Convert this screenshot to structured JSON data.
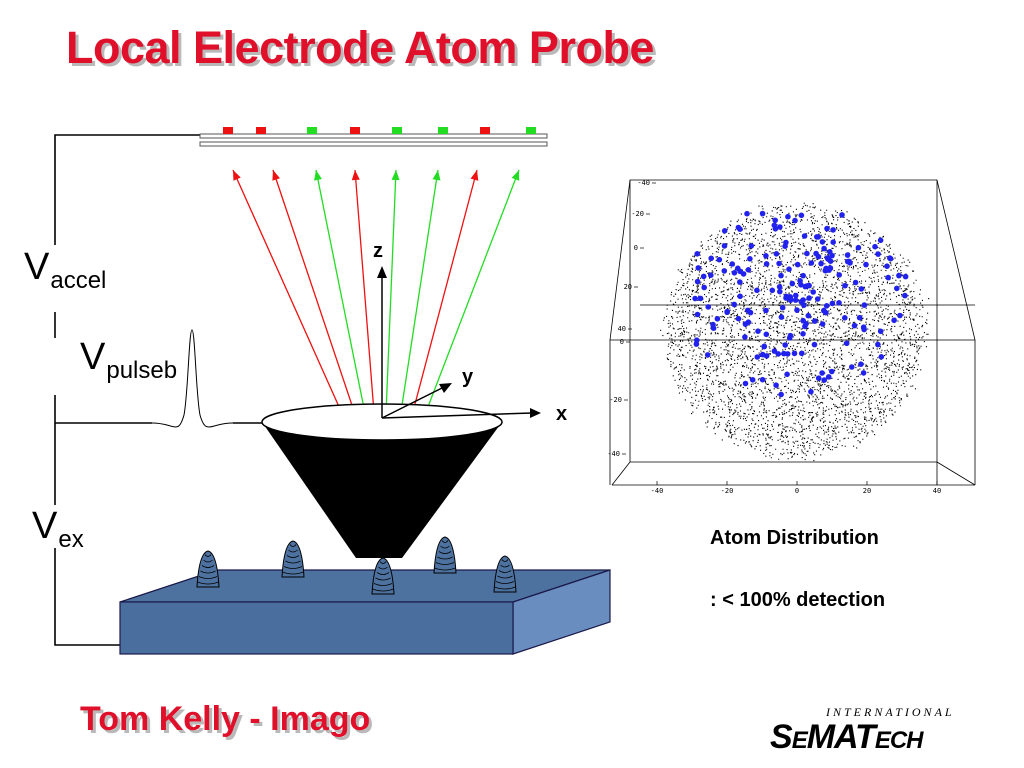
{
  "title": "Local Electrode Atom Probe",
  "labels": {
    "v_accel_base": "V",
    "v_accel_sub": "accel",
    "v_pulse_base": "V",
    "v_pulse_sub": "pulseb",
    "v_ex_base": "V",
    "v_ex_sub": "ex",
    "axis_z": "z",
    "axis_y": "y",
    "axis_x": "x"
  },
  "detector": {
    "pixel_colors": [
      "red",
      "red",
      "green",
      "red",
      "green",
      "green",
      "red",
      "green"
    ]
  },
  "atom_map": {
    "y_ticks_upper": [
      "-40",
      "-20",
      "0",
      "20",
      "40"
    ],
    "y_ticks_lower": [
      "0",
      "-20",
      "-40"
    ],
    "x_ticks": [
      "-40",
      "-20",
      "0",
      "20",
      "40"
    ]
  },
  "captions": {
    "line1": "Atom Distribution",
    "line2": ": < 100% detection"
  },
  "footer": "Tom Kelly - Imago",
  "logo": {
    "top": "INTERNATIONAL",
    "s1": "S",
    "s2": "E",
    "s3": "MAT",
    "s4": "ECH"
  },
  "colors": {
    "title": "#e0102a",
    "ion_red": "#ee1111",
    "ion_green": "#22dd22",
    "substrate": "#4e72a0",
    "atom_blue": "#2222ee"
  }
}
